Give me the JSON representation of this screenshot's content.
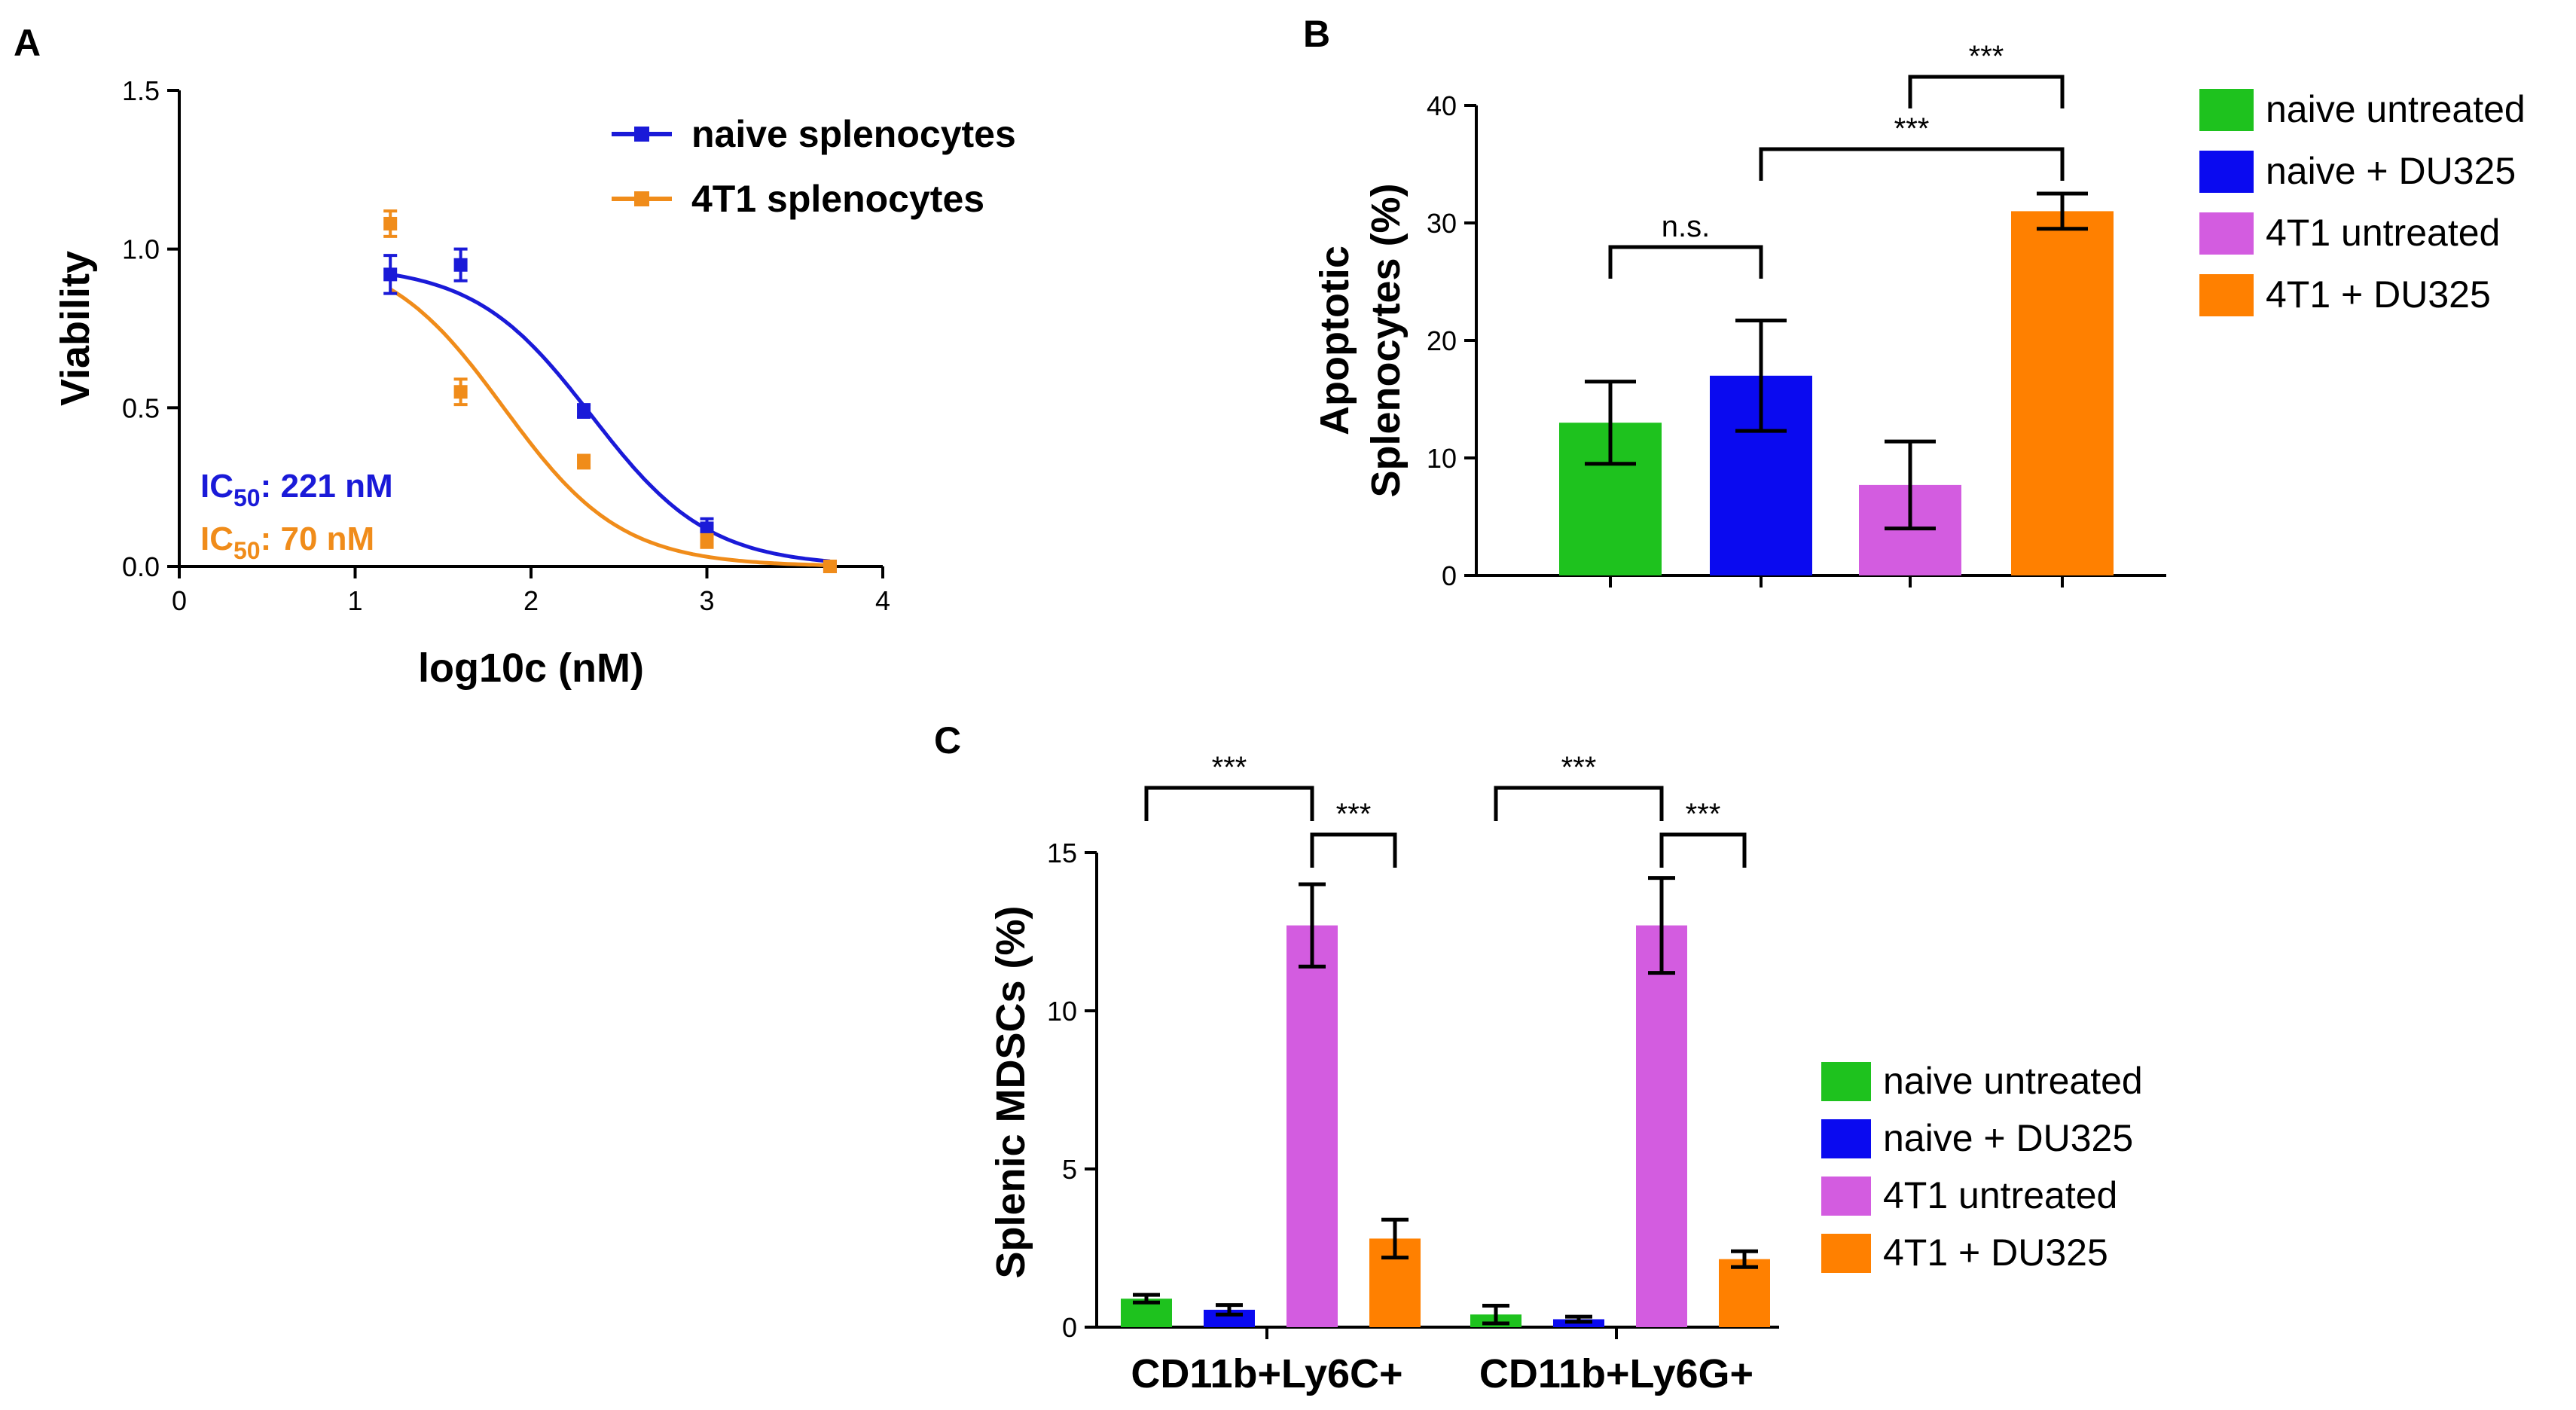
{
  "chart_data": [
    {
      "panel": "A",
      "type": "scatter",
      "xlabel": "log10c (nM)",
      "ylabel": "Viability",
      "xlim": [
        0,
        4
      ],
      "ylim": [
        0,
        1.5
      ],
      "xticks": [
        "0",
        "1",
        "2",
        "3",
        "4"
      ],
      "yticks": [
        "0.0",
        "0.5",
        "1.0",
        "1.5"
      ],
      "legend_position": "top-right",
      "series": [
        {
          "name": "naive splenocytes",
          "color": "#1a1ad8",
          "x": [
            1.2,
            1.6,
            2.3,
            3.0,
            3.7
          ],
          "y": [
            0.92,
            0.95,
            0.49,
            0.12,
            0.0
          ],
          "err": [
            0.06,
            0.05,
            0.02,
            0.03,
            0.0
          ],
          "fit": {
            "top": 0.95,
            "bottom": 0.0,
            "log_ic50": 2.344,
            "hill": 1.3
          },
          "annotation": {
            "prefix": "IC",
            "sub": "50",
            "suffix": ": 221 nM"
          }
        },
        {
          "name": "4T1 splenocytes",
          "color": "#f08c1a",
          "x": [
            1.2,
            1.6,
            2.3,
            3.0,
            3.7
          ],
          "y": [
            1.08,
            0.55,
            0.33,
            0.08,
            0.0
          ],
          "err": [
            0.04,
            0.04,
            0.02,
            0.02,
            0.0
          ],
          "fit": {
            "top": 1.0,
            "bottom": 0.0,
            "log_ic50": 1.845,
            "hill": 1.3
          },
          "annotation": {
            "prefix": "IC",
            "sub": "50",
            "suffix": ": 70 nM"
          }
        }
      ]
    },
    {
      "panel": "B",
      "type": "bar",
      "ylabel_line1": "Apoptotic",
      "ylabel_line2": "Splenocytes  (%)",
      "ylim": [
        0,
        40
      ],
      "yticks": [
        "0",
        "10",
        "20",
        "30",
        "40"
      ],
      "legend_position": "right",
      "categories": [
        "naive untreated",
        "naive + DU325",
        "4T1 untreated",
        "4T1 + DU325"
      ],
      "colors": [
        "#1ec21e",
        "#0a0af0",
        "#d35ce0",
        "#ff8000"
      ],
      "values": [
        13.0,
        17.0,
        7.7,
        31.0
      ],
      "errors": [
        3.5,
        4.7,
        3.7,
        1.5
      ],
      "significance": [
        {
          "from": 0,
          "to": 1,
          "label": "n.s."
        },
        {
          "from": 1,
          "to": 3,
          "label": "***"
        },
        {
          "from": 2,
          "to": 3,
          "label": "***"
        }
      ]
    },
    {
      "panel": "C",
      "type": "bar",
      "ylabel": "Splenic MDSCs  (%)",
      "ylim": [
        0,
        15
      ],
      "yticks": [
        "0",
        "5",
        "10",
        "15"
      ],
      "legend_position": "right",
      "groups": [
        "CD11b+Ly6C+",
        "CD11b+Ly6G+"
      ],
      "series": [
        {
          "name": "naive untreated",
          "color": "#1ec21e",
          "values": [
            0.9,
            0.4
          ],
          "errors": [
            0.12,
            0.28
          ]
        },
        {
          "name": "naive + DU325",
          "color": "#0a0af0",
          "values": [
            0.55,
            0.25
          ],
          "errors": [
            0.15,
            0.08
          ]
        },
        {
          "name": "4T1 untreated",
          "color": "#d35ce0",
          "values": [
            12.7,
            12.7
          ],
          "errors": [
            1.3,
            1.5
          ]
        },
        {
          "name": "4T1 + DU325",
          "color": "#ff8000",
          "values": [
            2.8,
            2.15
          ],
          "errors": [
            0.6,
            0.25
          ]
        }
      ],
      "significance": [
        {
          "group": 0,
          "from": 0,
          "to": 2,
          "label": "***"
        },
        {
          "group": 0,
          "from": 2,
          "to": 3,
          "label": "***"
        },
        {
          "group": 1,
          "from": 0,
          "to": 2,
          "label": "***"
        },
        {
          "group": 1,
          "from": 2,
          "to": 3,
          "label": "***"
        }
      ]
    }
  ],
  "labels": {
    "a": "A",
    "b": "B",
    "c": "C"
  }
}
